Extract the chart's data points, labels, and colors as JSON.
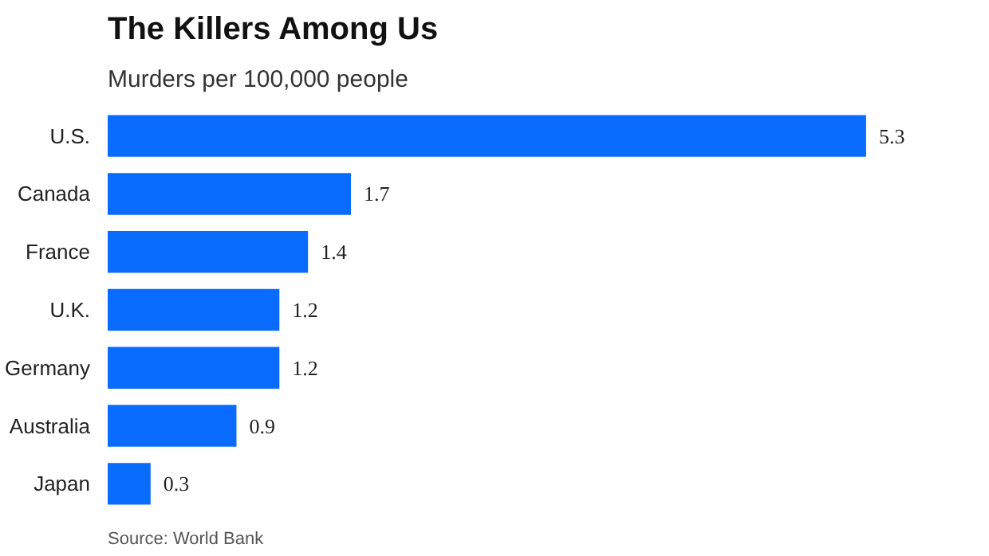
{
  "chart_data": {
    "type": "bar",
    "orientation": "horizontal",
    "title": "The Killers Among Us",
    "subtitle": "Murders per 100,000 people",
    "categories": [
      "U.S.",
      "Canada",
      "France",
      "U.K.",
      "Germany",
      "Australia",
      "Japan"
    ],
    "values": [
      5.3,
      1.7,
      1.4,
      1.2,
      1.2,
      0.9,
      0.3
    ],
    "color": "#0a6cff",
    "data_labels": true,
    "grid": false,
    "annotations": [
      "Source: World Bank"
    ]
  }
}
